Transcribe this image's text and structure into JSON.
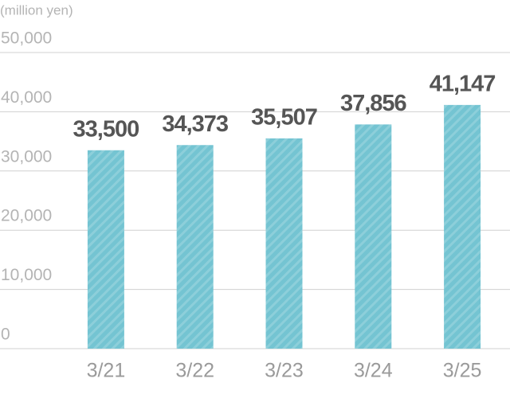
{
  "chart_data": {
    "type": "bar",
    "y_label": "(million yen)",
    "categories": [
      "3/21",
      "3/22",
      "3/23",
      "3/24",
      "3/25"
    ],
    "values": [
      33500,
      34373,
      35507,
      37856,
      41147
    ],
    "value_labels": [
      "33,500",
      "34,373",
      "35,507",
      "37,856",
      "41,147"
    ],
    "color": "#74c4d2",
    "ylim": [
      0,
      50000
    ],
    "yticks": [
      0,
      {
        "value": 10000,
        "label": "10,000"
      },
      {
        "value": 20000,
        "label": "20,000"
      },
      {
        "value": 30000,
        "label": "30,000"
      },
      {
        "value": 40000,
        "label": "40,000"
      },
      {
        "value": 50000,
        "label": "50,000"
      }
    ],
    "grid": true
  }
}
